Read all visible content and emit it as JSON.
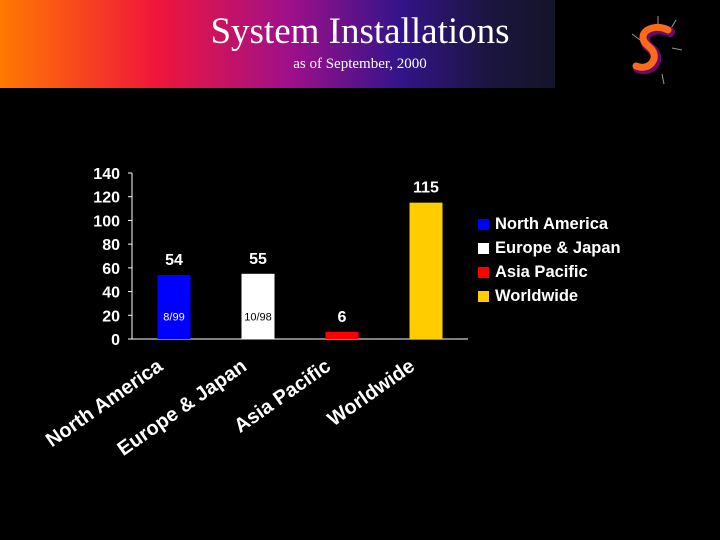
{
  "header": {
    "title": "System Installations",
    "subtitle": "as of September, 2000"
  },
  "logo": {
    "icon": "s-logo-icon"
  },
  "colors": {
    "north_america": "#0000ff",
    "europe_japan": "#ffffff",
    "asia_pacific": "#ff0000",
    "worldwide": "#ffcc00"
  },
  "chart_data": {
    "type": "bar",
    "categories": [
      "North America",
      "Europe & Japan",
      "Asia Pacific",
      "Worldwide"
    ],
    "values": [
      54,
      55,
      6,
      115
    ],
    "value_labels": [
      "54",
      "55",
      "6",
      "115"
    ],
    "inner_labels": [
      "8/99",
      "10/98",
      "",
      ""
    ],
    "colors": [
      "#0000ff",
      "#ffffff",
      "#ff0000",
      "#ffcc00"
    ],
    "ylim": [
      0,
      140
    ],
    "yticks": [
      0,
      20,
      40,
      60,
      80,
      100,
      120,
      140
    ],
    "grid": false,
    "legend": {
      "placement": "right",
      "entries": [
        "North America",
        "Europe & Japan",
        "Asia Pacific",
        "Worldwide"
      ]
    },
    "title": "",
    "xlabel": "",
    "ylabel": ""
  }
}
